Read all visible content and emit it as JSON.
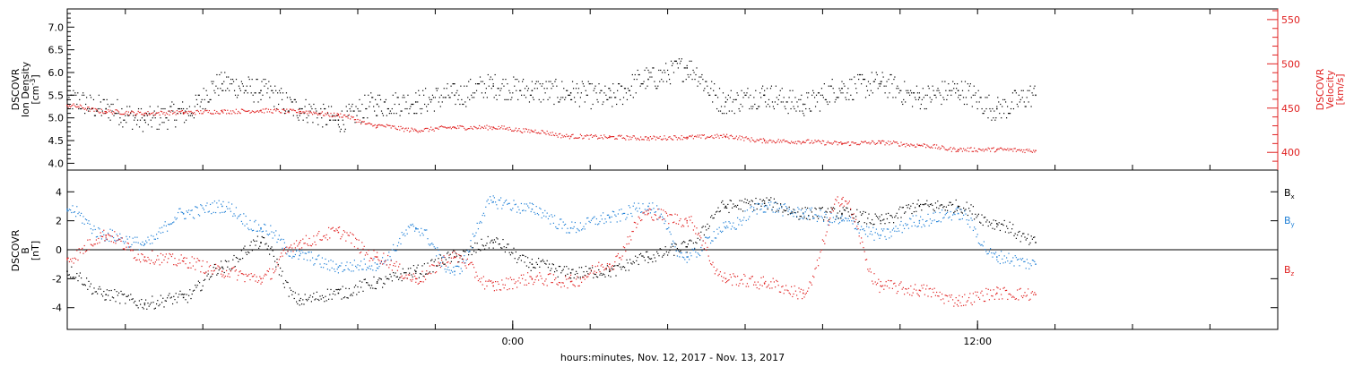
{
  "xlabel": "hours:minutes, Nov. 12, 2017 - Nov. 13, 2017",
  "time_axis": {
    "range_hours": [
      -11.5,
      19.75
    ],
    "major_ticks": [
      {
        "h": 0,
        "label": "0:00"
      },
      {
        "h": 12,
        "label": "12:00"
      }
    ],
    "minor_step_hours": 2
  },
  "colors": {
    "bx": "#000000",
    "by": "#1e7fd6",
    "bz": "#e02020",
    "velocity": "#e02020",
    "axis": "#000000"
  },
  "chart_data": [
    {
      "type": "scatter",
      "panel": "top",
      "ylabel_left": [
        "DSCOVR",
        "Ion Density",
        "[cm^-3]"
      ],
      "ylabel_right": [
        "DSCOVR",
        "Velocity",
        "[km/s]"
      ],
      "ylim_left": [
        3.85,
        7.4
      ],
      "yticks_left": [
        "4.0",
        "4.5",
        "5.0",
        "5.5",
        "6.0",
        "6.5",
        "7.0"
      ],
      "ylim_right": [
        380,
        562
      ],
      "yticks_right": [
        "400",
        "450",
        "500",
        "550"
      ],
      "series": [
        {
          "name": "density",
          "axis": "left",
          "color": "#000000",
          "x_hours": [
            -11.5,
            -10.5,
            -9.5,
            -8.5,
            -7.5,
            -6.5,
            -5.5,
            -4.5,
            -3.5,
            -2.5,
            -1.5,
            -0.5,
            0.5,
            1.5,
            2.5,
            3.5,
            4.5,
            5.5,
            6.5,
            7.5,
            8.5,
            9.5,
            10.5,
            11.5,
            12.5,
            13.5
          ],
          "values": [
            5.4,
            5.2,
            4.95,
            5.1,
            5.75,
            5.6,
            5.2,
            4.95,
            5.3,
            5.35,
            5.5,
            5.7,
            5.6,
            5.55,
            5.45,
            5.85,
            6.1,
            5.35,
            5.5,
            5.3,
            5.65,
            5.75,
            5.45,
            5.6,
            5.2,
            5.5
          ]
        },
        {
          "name": "velocity",
          "axis": "right",
          "color": "#e02020",
          "x_hours": [
            -11.5,
            -10.5,
            -9.5,
            -8.5,
            -7.5,
            -6.5,
            -5.5,
            -4.5,
            -3.5,
            -2.5,
            -1.5,
            -0.5,
            0.5,
            1.5,
            2.5,
            3.5,
            4.5,
            5.5,
            6.5,
            7.5,
            8.5,
            9.5,
            10.5,
            11.5,
            12.5,
            13.5
          ],
          "values": [
            453,
            446,
            444,
            445,
            446,
            447,
            446,
            442,
            430,
            425,
            428,
            428,
            424,
            418,
            417,
            416,
            417,
            418,
            413,
            412,
            410,
            411,
            408,
            403,
            403,
            402
          ]
        }
      ]
    },
    {
      "type": "scatter",
      "panel": "bottom",
      "ylabel_left": [
        "DSCOVR",
        "B",
        "[nT]"
      ],
      "ylim": [
        -5.5,
        5.5
      ],
      "yticks": [
        "-4",
        "-2",
        "0",
        "2",
        "4"
      ],
      "zero_line": true,
      "legend": [
        "B_x",
        "B_y",
        "B_z"
      ],
      "series": [
        {
          "name": "B_x",
          "color": "#000000",
          "x_hours": [
            -11.5,
            -10.5,
            -9.5,
            -8.5,
            -7.5,
            -6.5,
            -5.5,
            -4.5,
            -3.5,
            -2.5,
            -1.5,
            -0.5,
            0.5,
            1.5,
            2.5,
            3.5,
            4.5,
            5.5,
            6.5,
            7.5,
            8.5,
            9.5,
            10.5,
            11.5,
            12.5,
            13.5
          ],
          "values": [
            -1.5,
            -3.1,
            -3.7,
            -3.3,
            -1.2,
            0.5,
            -3.5,
            -3.0,
            -2.3,
            -1.5,
            -0.5,
            0.5,
            -1.0,
            -1.6,
            -1.5,
            -0.5,
            0.2,
            3.0,
            3.2,
            2.5,
            2.5,
            2.0,
            3.0,
            3.0,
            1.8,
            0.5
          ]
        },
        {
          "name": "B_y",
          "color": "#1e7fd6",
          "x_hours": [
            -11.5,
            -10.5,
            -9.5,
            -8.5,
            -7.5,
            -6.5,
            -5.5,
            -4.5,
            -3.5,
            -2.5,
            -1.5,
            -0.5,
            0.5,
            1.5,
            2.5,
            3.5,
            4.5,
            5.5,
            6.5,
            7.5,
            8.5,
            9.5,
            10.5,
            11.5,
            12.5,
            13.5
          ],
          "values": [
            2.8,
            1.0,
            0.4,
            2.5,
            3.0,
            1.5,
            -0.4,
            -1.2,
            -1.0,
            1.5,
            -1.5,
            3.3,
            2.8,
            1.5,
            2.2,
            3.0,
            -0.5,
            1.5,
            3.0,
            2.5,
            2.0,
            1.0,
            2.0,
            2.5,
            -0.5,
            -1.0
          ]
        },
        {
          "name": "B_z",
          "color": "#e02020",
          "x_hours": [
            -11.5,
            -10.5,
            -9.5,
            -8.5,
            -7.5,
            -6.5,
            -5.5,
            -4.5,
            -3.5,
            -2.5,
            -1.5,
            -0.5,
            0.5,
            1.5,
            2.5,
            3.5,
            4.5,
            5.5,
            6.5,
            7.5,
            8.5,
            9.5,
            10.5,
            11.5,
            12.5,
            13.5
          ],
          "values": [
            -0.6,
            1.0,
            -0.5,
            -0.8,
            -1.5,
            -2.0,
            0.5,
            1.2,
            -0.5,
            -2.0,
            -0.5,
            -2.5,
            -2.0,
            -2.2,
            -1.0,
            2.5,
            2.0,
            -2.0,
            -2.3,
            -3.0,
            3.5,
            -2.5,
            -2.8,
            -3.5,
            -3.0,
            -3.1
          ]
        }
      ]
    }
  ]
}
